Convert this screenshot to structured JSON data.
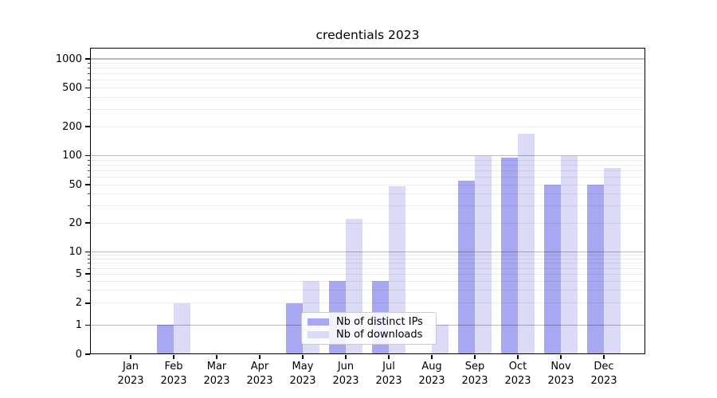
{
  "chart_data": {
    "type": "bar",
    "title": "credentials 2023",
    "categories": [
      "Jan 2023",
      "Feb 2023",
      "Mar 2023",
      "Apr 2023",
      "May 2023",
      "Jun 2023",
      "Jul 2023",
      "Aug 2023",
      "Sep 2023",
      "Oct 2023",
      "Nov 2023",
      "Dec 2023"
    ],
    "series": [
      {
        "name": "Nb of distinct IPs",
        "color": "#a7a7f2",
        "values": [
          0,
          1,
          0,
          0,
          2,
          4,
          4,
          0,
          55,
          95,
          50,
          50
        ]
      },
      {
        "name": "Nb of downloads",
        "color": "#dbdbf8",
        "values": [
          0,
          2,
          0,
          0,
          4,
          22,
          48,
          1,
          100,
          170,
          100,
          75
        ]
      }
    ],
    "yscale": "symlog",
    "ylim": [
      0,
      1400
    ],
    "yticks": [
      0,
      1,
      2,
      5,
      10,
      20,
      50,
      100,
      200,
      500,
      1000
    ],
    "major_grid_values": [
      1,
      10,
      100,
      1000
    ],
    "grid": "horizontal",
    "legend_position": "lower center"
  },
  "colors": {
    "axis": "#000000",
    "bar_distinct_ips": "#a7a7f2",
    "bar_downloads": "#dbdbf8",
    "legend_border": "#cbcbcb",
    "background": "#ffffff"
  }
}
